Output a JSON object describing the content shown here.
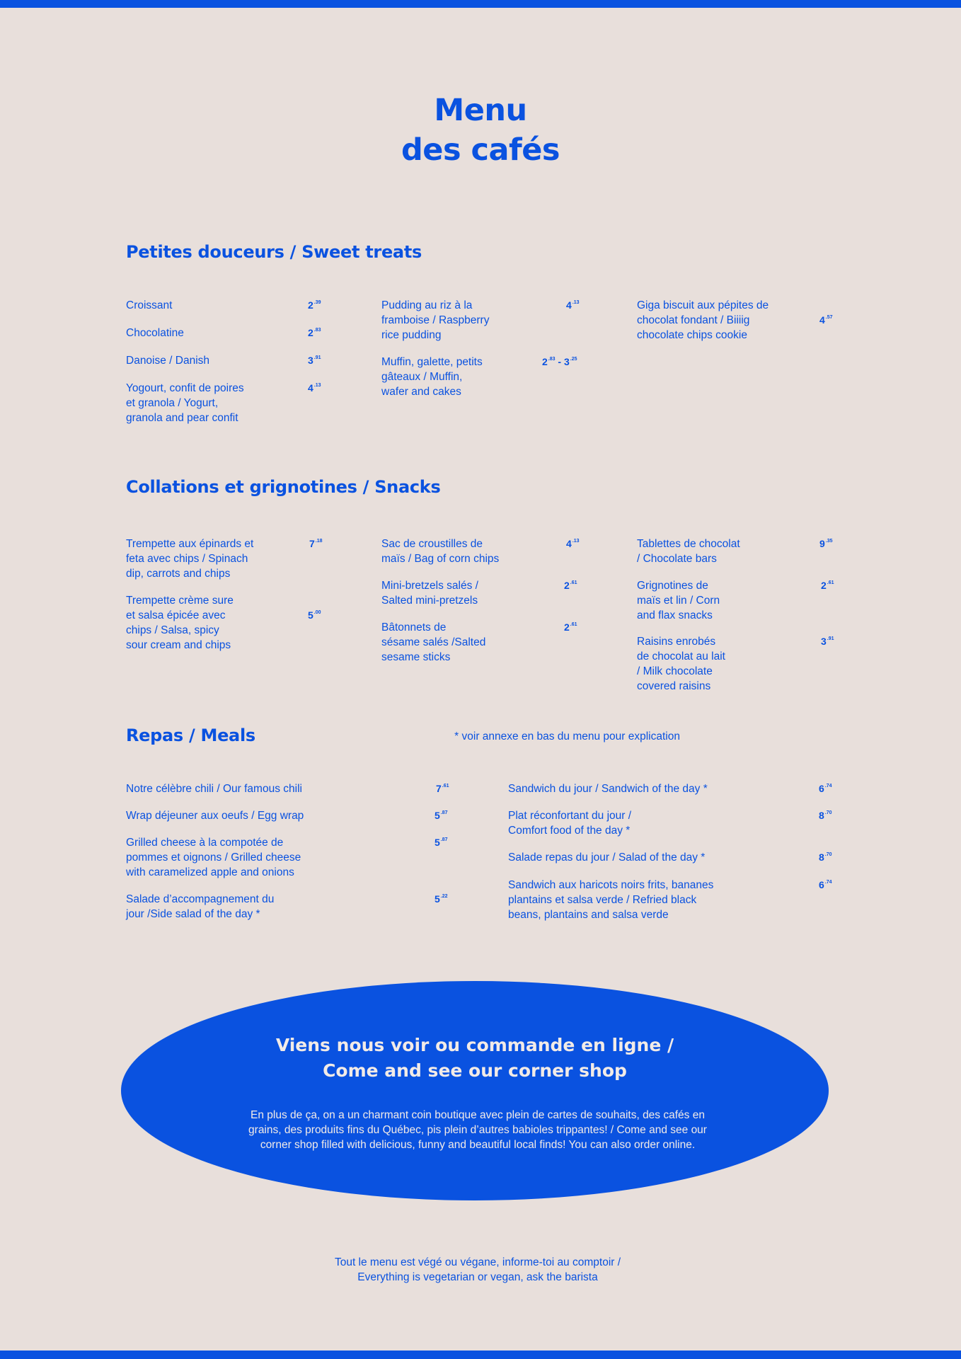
{
  "colors": {
    "brand_blue": "#0a52e0",
    "background": "#e8dfdb",
    "oval_text": "#f2ebe7"
  },
  "title": {
    "line1": "Menu",
    "line2": "des cafés"
  },
  "sections": [
    {
      "heading": "Petites douceurs / Sweet treats",
      "items": [
        {
          "name": "Croissant",
          "price": "2",
          "cents": ".39"
        },
        {
          "name": "Chocolatine",
          "price": "2",
          "cents": ".83"
        },
        {
          "name": "Danoise / Danish",
          "price": "3",
          "cents": ".91"
        },
        {
          "name": "Yogourt, confit de poires\net granola / Yogurt,\ngranola and pear confit",
          "price": "4",
          "cents": ".13"
        },
        {
          "name": "Pudding au riz à la\nframboise / Raspberry\nrice pudding",
          "price": "4",
          "cents": ".13"
        },
        {
          "name": "Muffin, galette, petits\ngâteaux / Muffin,\nwafer and cakes",
          "price": "2",
          "cents": ".83",
          "price2": " - 3",
          "cents2": ".25"
        },
        {
          "name": "Giga biscuit aux pépites de\nchocolat fondant / Biiiig\nchocolate chips cookie",
          "price": "4",
          "cents": ".57"
        }
      ]
    },
    {
      "heading": "Collations et grignotines / Snacks",
      "items": [
        {
          "name": "Trempette aux épinards et\nfeta avec chips / Spinach\ndip, carrots and chips",
          "price": "7",
          "cents": ".18"
        },
        {
          "name": "Trempette crème sure\net salsa épicée avec\nchips / Salsa, spicy\nsour cream and chips",
          "price": "5",
          "cents": ".00"
        },
        {
          "name": "Sac de croustilles de\nmaïs / Bag of corn chips",
          "price": "4",
          "cents": ".13"
        },
        {
          "name": "Mini-bretzels salés /\nSalted mini-pretzels",
          "price": "2",
          "cents": ".61"
        },
        {
          "name": "Bâtonnets de\nsésame salés /Salted\nsesame sticks",
          "price": "2",
          "cents": ".61"
        },
        {
          "name": "Tablettes de chocolat\n/ Chocolate bars",
          "price": "9",
          "cents": ".35"
        },
        {
          "name": "Grignotines de\nmaïs et lin / Corn\nand flax snacks",
          "price": "2",
          "cents": ".61"
        },
        {
          "name": "Raisins enrobés\nde chocolat au lait\n/ Milk chocolate\ncovered raisins",
          "price": "3",
          "cents": ".91"
        }
      ]
    },
    {
      "heading": "Repas / Meals",
      "note": "* voir annexe en bas du menu pour explication",
      "items": [
        {
          "name": "Notre célèbre chili / Our famous chili",
          "price": "7",
          "cents": ".61"
        },
        {
          "name": "Wrap déjeuner aux oeufs / Egg wrap",
          "price": "5",
          "cents": ".87"
        },
        {
          "name": "Grilled cheese à la compotée de\npommes et oignons / Grilled cheese\nwith caramelized apple and onions",
          "price": "5",
          "cents": ".87"
        },
        {
          "name": "Salade d’accompagnement du\njour /Side salad of the day *",
          "price": "5",
          "cents": ".22"
        },
        {
          "name": "Sandwich du jour / Sandwich of the day *",
          "price": "6",
          "cents": ".74"
        },
        {
          "name": "Plat réconfortant du jour /\nComfort food of the day *",
          "price": "8",
          "cents": ".70"
        },
        {
          "name": "Salade repas du jour / Salad of the day *",
          "price": "8",
          "cents": ".70"
        },
        {
          "name": "Sandwich aux haricots noirs frits, bananes\nplantains et salsa verde / Refried black\nbeans, plantains and salsa verde",
          "price": "6",
          "cents": ".74"
        }
      ]
    }
  ],
  "shop": {
    "heading": "Viens nous voir ou commande en ligne /\nCome and see our corner shop",
    "body": "En plus de ça, on a un charmant coin boutique avec plein de cartes de souhaits, des cafés en grains, des produits fins du Québec, pis plein d’autres babioles trippantes! / Come and see our corner shop filled with delicious, funny and beautiful local finds! You can also order online."
  },
  "footer": "Tout le menu est végé ou végane, informe-toi au comptoir /\nEverything is vegetarian or vegan, ask the barista"
}
